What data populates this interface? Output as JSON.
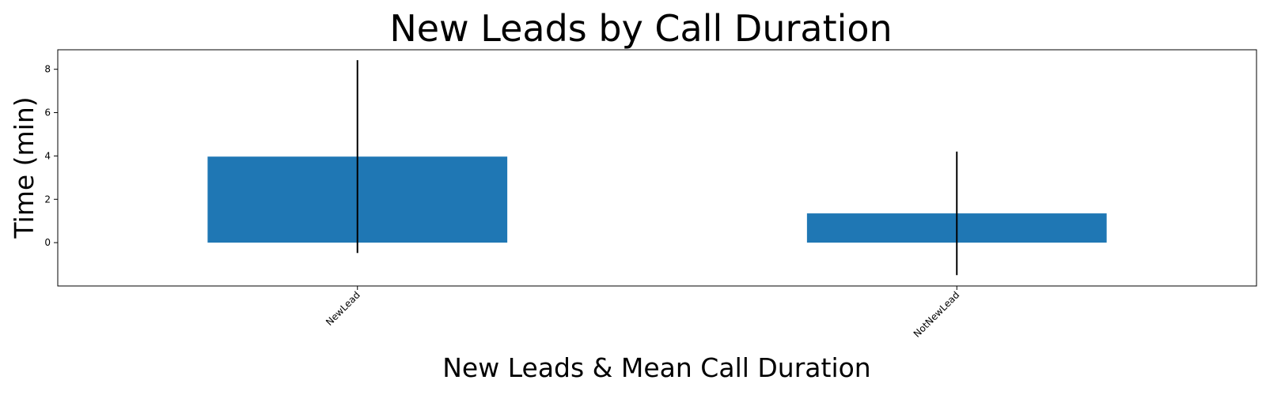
{
  "chart_data": {
    "type": "bar",
    "title": "New Leads by Call Duration",
    "xlabel": "New Leads & Mean Call Duration",
    "ylabel": "Time (min)",
    "categories": [
      "NewLead",
      "NotNewLead"
    ],
    "values": [
      3.97,
      1.35
    ],
    "error": [
      4.45,
      2.85
    ],
    "ylim": [
      -2.0,
      8.9
    ],
    "yticks": [
      0,
      2,
      4,
      6,
      8
    ],
    "bar_color": "#1f77b4",
    "errorbar_color": "#000000",
    "grid": false,
    "legend": false
  }
}
